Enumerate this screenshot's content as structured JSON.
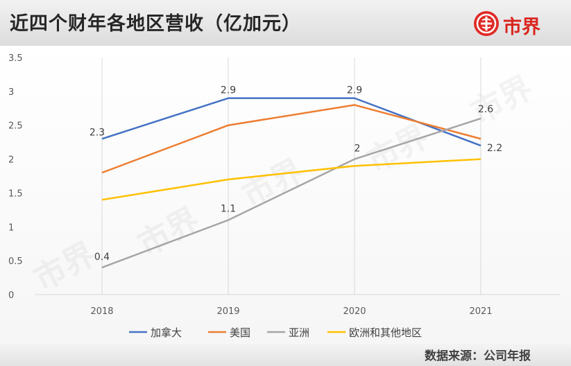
{
  "header": {
    "title": "近四个财年各地区营收（亿加元）",
    "logo_text": "市界"
  },
  "source": "数据来源：公司年报",
  "watermark": "市界",
  "colors": {
    "加拿大": "#4472c4",
    "美国": "#ed7d31",
    "亚洲": "#a5a5a5",
    "欧洲和其他地区": "#ffc000",
    "brand": "#e02a26"
  },
  "chart_data": {
    "type": "line",
    "categories": [
      "2018",
      "2019",
      "2020",
      "2021"
    ],
    "ylim": [
      0,
      3.5
    ],
    "yticks": [
      "0",
      "0.5",
      "1",
      "1.5",
      "2",
      "2.5",
      "3",
      "3.5"
    ],
    "grid": "vertical",
    "legend": "bottom",
    "series": [
      {
        "name": "加拿大",
        "values": [
          2.3,
          2.9,
          2.9,
          2.2
        ],
        "labels": [
          "2.3",
          "2.9",
          "2.9",
          "2.2"
        ]
      },
      {
        "name": "美国",
        "values": [
          1.8,
          2.5,
          2.8,
          2.3
        ],
        "labels": [
          "",
          "",
          "",
          ""
        ]
      },
      {
        "name": "亚洲",
        "values": [
          0.4,
          1.1,
          2.0,
          2.6
        ],
        "labels": [
          "0.4",
          "1.1",
          "2",
          "2.6"
        ]
      },
      {
        "name": "欧洲和其他地区",
        "values": [
          1.4,
          1.7,
          1.9,
          2.0
        ],
        "labels": [
          "",
          "",
          "",
          ""
        ]
      }
    ]
  }
}
